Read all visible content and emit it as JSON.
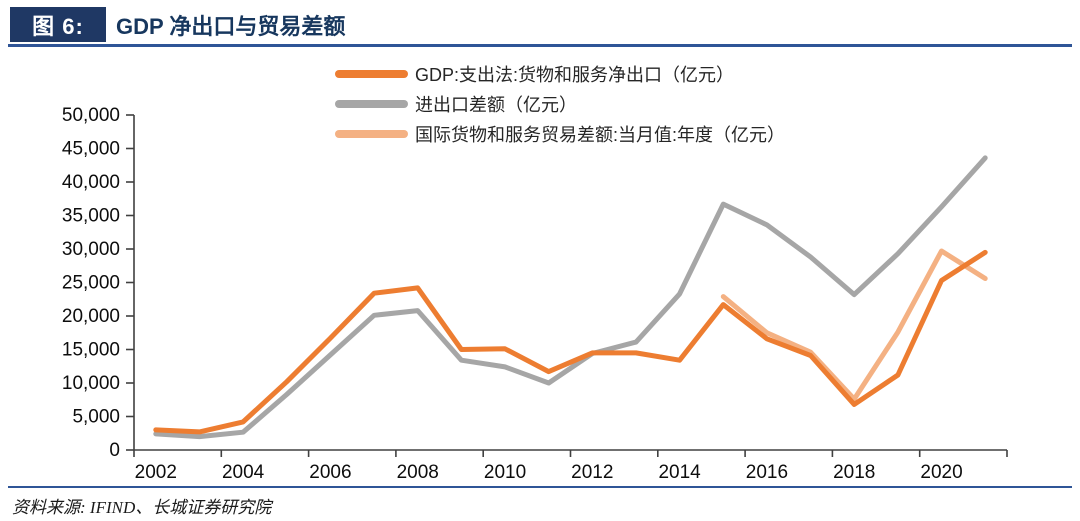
{
  "header": {
    "badge": "图 6:",
    "title": "GDP 净出口与贸易差额"
  },
  "source": "资料来源: IFIND、长城证券研究院",
  "colors": {
    "badge_bg": "#1F3864",
    "title_text": "#17375E",
    "rule_blue": "#2F5597",
    "axis": "#404040",
    "series_orange": "#ED7D31",
    "series_gray": "#A6A6A6",
    "series_peach": "#F4B183"
  },
  "chart_data": {
    "type": "line",
    "x": [
      2002,
      2003,
      2004,
      2005,
      2006,
      2007,
      2008,
      2009,
      2010,
      2011,
      2012,
      2013,
      2014,
      2015,
      2016,
      2017,
      2018,
      2019,
      2020,
      2021
    ],
    "series": [
      {
        "name": "GDP:支出法:货物和服务净出口（亿元）",
        "color": "#ED7D31",
        "values": [
          3000,
          2700,
          4200,
          10200,
          16700,
          23400,
          24200,
          15000,
          15100,
          11700,
          14500,
          14500,
          13400,
          21700,
          16600,
          14100,
          6800,
          11200,
          25300,
          29500
        ]
      },
      {
        "name": "进出口差额（亿元）",
        "color": "#A6A6A6",
        "values": [
          2400,
          2000,
          2650,
          8300,
          14200,
          20100,
          20800,
          13400,
          12400,
          10000,
          14400,
          16100,
          23300,
          36700,
          33600,
          28800,
          23200,
          29300,
          36300,
          43600
        ]
      },
      {
        "name": "国际货物和服务贸易差额:当月值:年度（亿元）",
        "color": "#F4B183",
        "values": [
          null,
          null,
          null,
          null,
          null,
          null,
          null,
          null,
          null,
          null,
          null,
          null,
          null,
          22900,
          17500,
          14600,
          7600,
          17600,
          29700,
          25600
        ]
      }
    ],
    "ylim": [
      0,
      50000
    ],
    "ytick_step": 5000,
    "xtick_labels": [
      "2002",
      "2004",
      "2006",
      "2008",
      "2010",
      "2012",
      "2014",
      "2016",
      "2018",
      "2020"
    ],
    "legend_position": "top",
    "grid": false,
    "title": "",
    "xlabel": "",
    "ylabel": ""
  }
}
